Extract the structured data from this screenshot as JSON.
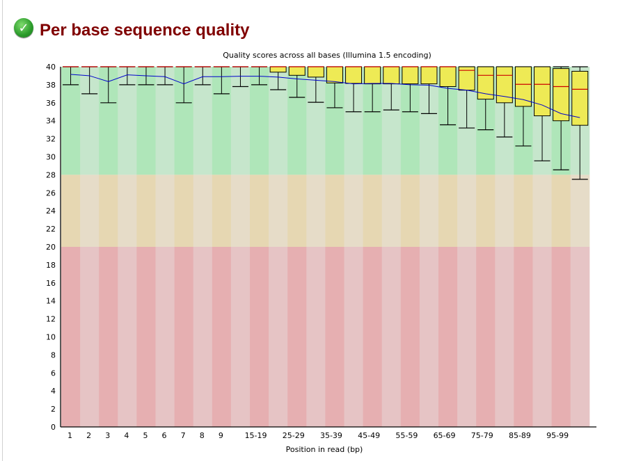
{
  "header": {
    "title": "Per base sequence quality",
    "status_icon": "pass-check-icon"
  },
  "chart_data": {
    "type": "boxplot",
    "title": "Quality scores across all bases (Illumina 1.5 encoding)",
    "xlabel": "Position in read (bp)",
    "ylabel": "",
    "ylim": [
      0,
      40
    ],
    "yticks": [
      "0",
      "2",
      "4",
      "6",
      "8",
      "10",
      "12",
      "14",
      "16",
      "18",
      "20",
      "22",
      "24",
      "26",
      "28",
      "30",
      "32",
      "34",
      "36",
      "38",
      "40"
    ],
    "xtick_labels": [
      "1",
      "2",
      "3",
      "4",
      "5",
      "6",
      "7",
      "8",
      "9",
      "",
      "15-19",
      "",
      "25-29",
      "",
      "35-39",
      "",
      "45-49",
      "",
      "55-59",
      "",
      "65-69",
      "",
      "75-79",
      "",
      "85-89",
      "",
      "95-99",
      ""
    ],
    "bands": [
      {
        "name": "good",
        "from": 28,
        "to": 40,
        "colors": [
          "#afe6b9",
          "#c6e6cc"
        ]
      },
      {
        "name": "reasonable",
        "from": 20,
        "to": 28,
        "colors": [
          "#e6d7b2",
          "#e6dcc8"
        ]
      },
      {
        "name": "poor",
        "from": 0,
        "to": 20,
        "colors": [
          "#e6afb1",
          "#e6c4c5"
        ]
      }
    ],
    "colors": {
      "box": "#eeea55",
      "median": "#cc0000",
      "mean": "#0000cc",
      "whisker": "#000000"
    },
    "series": {
      "mean": [
        39.15,
        39.0,
        38.35,
        39.1,
        39.0,
        38.9,
        38.1,
        38.9,
        38.9,
        38.95,
        38.95,
        38.85,
        38.65,
        38.5,
        38.35,
        38.1,
        38.15,
        38.15,
        38.0,
        37.95,
        37.6,
        37.4,
        37.0,
        36.7,
        36.35,
        35.75,
        34.8,
        34.35
      ],
      "median": [
        40,
        40,
        40,
        40,
        40,
        40,
        40,
        40,
        40,
        40,
        40,
        40,
        40,
        40,
        40,
        40,
        40,
        40,
        40,
        40,
        40,
        39.6,
        39.05,
        39.05,
        38.05,
        38.05,
        37.8,
        37.5
      ],
      "upper_quartile": [
        40,
        40,
        40,
        40,
        40,
        40,
        40,
        40,
        40,
        40,
        40,
        40,
        40,
        40,
        40,
        40,
        40,
        40,
        40,
        40,
        40,
        40,
        40,
        40,
        40,
        40,
        39.8,
        39.5
      ],
      "lower_quartile": [
        40,
        40,
        40,
        40,
        40,
        40,
        40,
        40,
        40,
        40,
        40,
        39.4,
        39.05,
        38.85,
        38.2,
        38.15,
        38.1,
        38.1,
        38.1,
        38.1,
        37.8,
        37.4,
        36.4,
        36.0,
        35.6,
        34.55,
        34.0,
        33.5
      ],
      "upper_whisker": [
        40,
        40,
        40,
        40,
        40,
        40,
        40,
        40,
        40,
        40,
        40,
        40,
        40,
        40,
        40,
        40,
        40,
        40,
        40,
        40,
        40,
        40,
        40,
        40,
        40,
        40,
        40,
        40
      ],
      "lower_whisker": [
        38,
        37,
        36,
        38,
        38,
        38,
        36,
        38,
        37,
        37.8,
        38,
        37.45,
        36.6,
        36.05,
        35.45,
        35.0,
        35.0,
        35.2,
        35.0,
        34.8,
        33.55,
        33.2,
        33.0,
        32.2,
        31.2,
        29.55,
        28.55,
        27.5
      ]
    }
  }
}
